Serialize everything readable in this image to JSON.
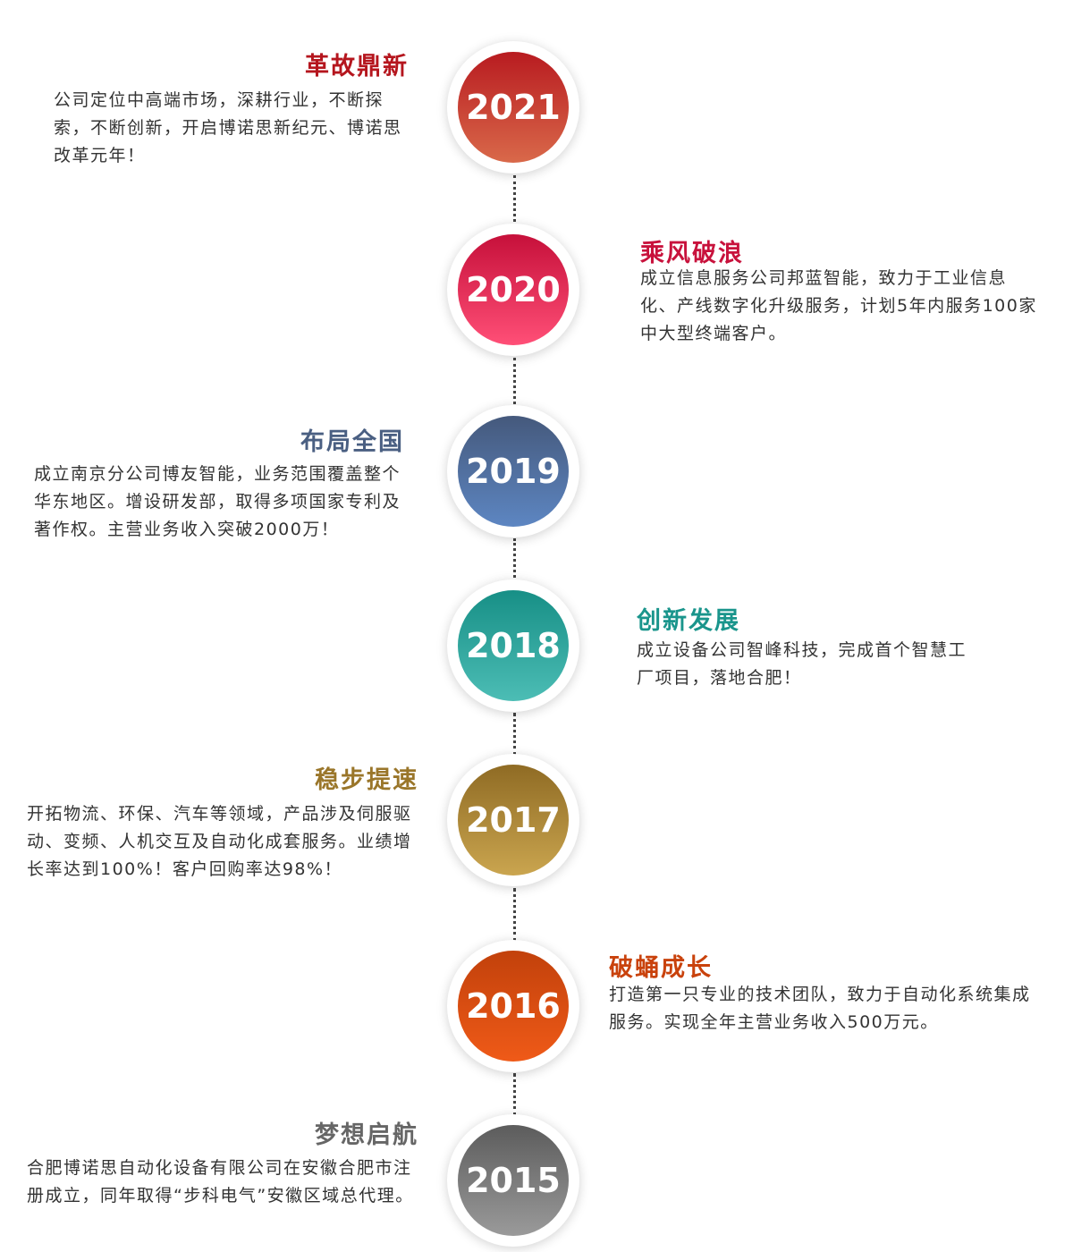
{
  "events": [
    {
      "year": "2021",
      "title": "革故鼎新",
      "desc": "公司定位中高端市场，深耕行业，不断探索，不断创新，开启博诺思新纪元、博诺思改革元年！",
      "color": "#b5161e",
      "gradient": [
        "#b81b20",
        "#d9694a"
      ]
    },
    {
      "year": "2020",
      "title": "乘风破浪",
      "desc": "成立信息服务公司邦蓝智能，致力于工业信息化、产线数字化升级服务，计划5年内服务100家中大型终端客户。",
      "color": "#c8123c",
      "gradient": [
        "#c6103a",
        "#ff4f77"
      ]
    },
    {
      "year": "2019",
      "title": "布局全国",
      "desc": "成立南京分公司博友智能，业务范围覆盖整个华东地区。增设研发部，取得多项国家专利及著作权。主营业务收入突破2000万！",
      "color": "#4a5f82",
      "gradient": [
        "#45597c",
        "#5d86c2"
      ]
    },
    {
      "year": "2018",
      "title": "创新发展",
      "desc": "成立设备公司智峰科技，完成首个智慧工厂项目，落地合肥！",
      "color": "#1a958c",
      "gradient": [
        "#178f86",
        "#4cbdb5"
      ]
    },
    {
      "year": "2017",
      "title": "稳步提速",
      "desc": "开拓物流、环保、汽车等领域，产品涉及伺服驱动、变频、人机交互及自动化成套服务。业绩增长率达到100%！客户回购率达98%！",
      "color": "#9a762a",
      "gradient": [
        "#8f6b24",
        "#caa54f"
      ]
    },
    {
      "year": "2016",
      "title": "破蛹成长",
      "desc": "打造第一只专业的技术团队，致力于自动化系统集成服务。实现全年主营业务收入500万元。",
      "color": "#c9420c",
      "gradient": [
        "#c2410b",
        "#ef5a18"
      ]
    },
    {
      "year": "2015",
      "title": "梦想启航",
      "desc": "合肥博诺思自动化设备有限公司在安徽合肥市注册成立，同年取得“步科电气”安徽区域总代理。",
      "color": "#666666",
      "gradient": [
        "#5c5c5c",
        "#9a9a9a"
      ]
    }
  ]
}
